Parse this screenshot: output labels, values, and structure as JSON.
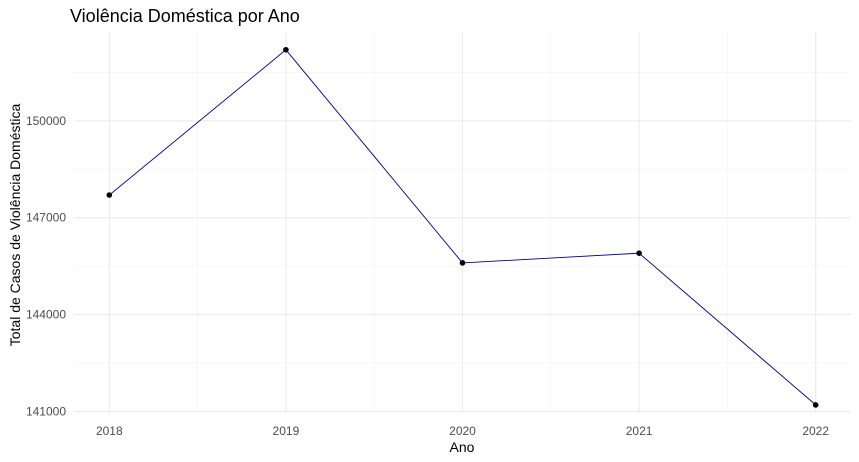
{
  "chart_data": {
    "type": "line",
    "title": "Violência Doméstica por Ano",
    "xlabel": "Ano",
    "ylabel": "Total de Casos de Violência Doméstica",
    "x": [
      2018,
      2019,
      2020,
      2021,
      2022
    ],
    "x_tick_labels": [
      "2018",
      "2019",
      "2020",
      "2021",
      "2022"
    ],
    "y_tick_values": [
      141000,
      144000,
      147000,
      150000
    ],
    "y_tick_labels": [
      "141000",
      "144000",
      "147000",
      "150000"
    ],
    "series": [
      {
        "values": [
          147700,
          152200,
          145600,
          145900,
          141200
        ]
      }
    ],
    "xlim": [
      2017.8,
      2022.2
    ],
    "ylim": [
      140950,
      152750
    ],
    "grid": true,
    "line_color": "#00008b",
    "point_color": "#000000"
  }
}
